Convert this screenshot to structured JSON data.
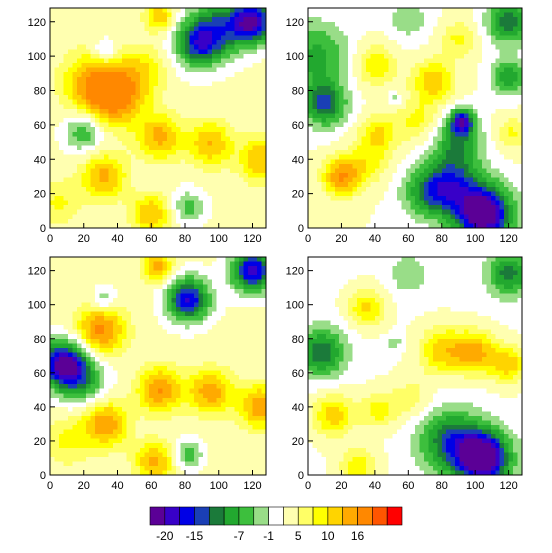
{
  "chart_data": {
    "type": "heatmap",
    "layout": "2x2 filled contour panels with shared horizontal colorbar",
    "grid": false,
    "axis": {
      "xlim": [
        0,
        128
      ],
      "ylim": [
        0,
        128
      ],
      "xticks": [
        0,
        20,
        40,
        60,
        80,
        100,
        120
      ],
      "yticks": [
        0,
        20,
        40,
        60,
        80,
        100,
        120
      ]
    },
    "colorbar": {
      "position": "bottom",
      "levels": [
        -20,
        -17.5,
        -15,
        -12.5,
        -10,
        -7,
        -4,
        -1,
        2,
        5,
        7.5,
        10,
        13,
        16
      ],
      "colors": [
        "#5b0096",
        "#3800c8",
        "#0000e6",
        "#1a3fb5",
        "#1b7a3a",
        "#22a82f",
        "#3dbf3d",
        "#99dd88",
        "#ffffff",
        "#ffffb0",
        "#ffff66",
        "#ffff00",
        "#ffd400",
        "#ffaa00",
        "#ff8800",
        "#ff5500",
        "#ff0000"
      ],
      "labels": [
        {
          "level": -20,
          "text": "-20"
        },
        {
          "level": -15,
          "text": "-15"
        },
        {
          "level": -7,
          "text": "-7"
        },
        {
          "level": -1,
          "text": "-1"
        },
        {
          "level": 5,
          "text": "5"
        },
        {
          "level": 10,
          "text": "10"
        },
        {
          "level": 16,
          "text": "16"
        }
      ]
    },
    "panels": [
      {
        "position": "top-left",
        "base": 3,
        "features": [
          {
            "x": 38,
            "y": 77,
            "amp": 16,
            "r": 12
          },
          {
            "x": 24,
            "y": 85,
            "amp": 9,
            "r": 12
          },
          {
            "x": 55,
            "y": 92,
            "amp": 6,
            "r": 10
          },
          {
            "x": 65,
            "y": 123,
            "amp": 10,
            "r": 6
          },
          {
            "x": 65,
            "y": 53,
            "amp": 11,
            "r": 9
          },
          {
            "x": 95,
            "y": 49,
            "amp": 10,
            "r": 9
          },
          {
            "x": 125,
            "y": 40,
            "amp": 10,
            "r": 9
          },
          {
            "x": 32,
            "y": 30,
            "amp": 11,
            "r": 9
          },
          {
            "x": 60,
            "y": 8,
            "amp": 10,
            "r": 8
          },
          {
            "x": 5,
            "y": 15,
            "amp": 5,
            "r": 9
          },
          {
            "x": 120,
            "y": 120,
            "amp": -22,
            "r": 9
          },
          {
            "x": 88,
            "y": 107,
            "amp": -16,
            "r": 10
          },
          {
            "x": 100,
            "y": 117,
            "amp": -12,
            "r": 12
          },
          {
            "x": 20,
            "y": 56,
            "amp": -10,
            "r": 8
          },
          {
            "x": 33,
            "y": 103,
            "amp": -7,
            "r": 5
          },
          {
            "x": 82,
            "y": 12,
            "amp": -8,
            "r": 7
          }
        ]
      },
      {
        "position": "top-right",
        "base": 2,
        "features": [
          {
            "x": 105,
            "y": 8,
            "amp": -26,
            "r": 12
          },
          {
            "x": 85,
            "y": 25,
            "amp": -15,
            "r": 12
          },
          {
            "x": 92,
            "y": 62,
            "amp": -18,
            "r": 5
          },
          {
            "x": 90,
            "y": 50,
            "amp": -11,
            "r": 10
          },
          {
            "x": 70,
            "y": 20,
            "amp": -9,
            "r": 10
          },
          {
            "x": 10,
            "y": 72,
            "amp": -15,
            "r": 9
          },
          {
            "x": 5,
            "y": 100,
            "amp": -10,
            "r": 14
          },
          {
            "x": 120,
            "y": 120,
            "amp": -14,
            "r": 9
          },
          {
            "x": 120,
            "y": 88,
            "amp": -12,
            "r": 7
          },
          {
            "x": 60,
            "y": 122,
            "amp": -5,
            "r": 9
          },
          {
            "x": 52,
            "y": 75,
            "amp": -5,
            "r": 3
          },
          {
            "x": 20,
            "y": 30,
            "amp": 14,
            "r": 8
          },
          {
            "x": 36,
            "y": 38,
            "amp": 6,
            "r": 9
          },
          {
            "x": 42,
            "y": 55,
            "amp": 8,
            "r": 8
          },
          {
            "x": 65,
            "y": 62,
            "amp": 6,
            "r": 9
          },
          {
            "x": 40,
            "y": 95,
            "amp": 8,
            "r": 9
          },
          {
            "x": 75,
            "y": 85,
            "amp": 10,
            "r": 9
          },
          {
            "x": 90,
            "y": 110,
            "amp": 6,
            "r": 8
          },
          {
            "x": 122,
            "y": 55,
            "amp": 6,
            "r": 7
          }
        ]
      },
      {
        "position": "bottom-left",
        "base": 3,
        "features": [
          {
            "x": 8,
            "y": 65,
            "amp": -24,
            "r": 10
          },
          {
            "x": 20,
            "y": 55,
            "amp": -9,
            "r": 10
          },
          {
            "x": 120,
            "y": 120,
            "amp": -22,
            "r": 9
          },
          {
            "x": 82,
            "y": 103,
            "amp": -21,
            "r": 9
          },
          {
            "x": 32,
            "y": 103,
            "amp": -7,
            "r": 5
          },
          {
            "x": 82,
            "y": 12,
            "amp": -9,
            "r": 6
          },
          {
            "x": 30,
            "y": 85,
            "amp": 14,
            "r": 10
          },
          {
            "x": 64,
            "y": 122,
            "amp": 12,
            "r": 6
          },
          {
            "x": 65,
            "y": 50,
            "amp": 13,
            "r": 9
          },
          {
            "x": 95,
            "y": 49,
            "amp": 12,
            "r": 9
          },
          {
            "x": 125,
            "y": 40,
            "amp": 12,
            "r": 9
          },
          {
            "x": 33,
            "y": 30,
            "amp": 13,
            "r": 9
          },
          {
            "x": 62,
            "y": 8,
            "amp": 11,
            "r": 8
          },
          {
            "x": 10,
            "y": 20,
            "amp": 5,
            "r": 10
          }
        ]
      },
      {
        "position": "bottom-right",
        "base": 1.5,
        "features": [
          {
            "x": 105,
            "y": 10,
            "amp": -26,
            "r": 11
          },
          {
            "x": 85,
            "y": 20,
            "amp": -14,
            "r": 13
          },
          {
            "x": 8,
            "y": 72,
            "amp": -14,
            "r": 10
          },
          {
            "x": 120,
            "y": 118,
            "amp": -13,
            "r": 9
          },
          {
            "x": 60,
            "y": 118,
            "amp": -5,
            "r": 8
          },
          {
            "x": 52,
            "y": 78,
            "amp": -5,
            "r": 3
          },
          {
            "x": 35,
            "y": 98,
            "amp": 9,
            "r": 8
          },
          {
            "x": 80,
            "y": 73,
            "amp": 10,
            "r": 10
          },
          {
            "x": 100,
            "y": 72,
            "amp": 12,
            "r": 9
          },
          {
            "x": 120,
            "y": 65,
            "amp": 10,
            "r": 8
          },
          {
            "x": 15,
            "y": 35,
            "amp": 10,
            "r": 9
          },
          {
            "x": 42,
            "y": 38,
            "amp": 7,
            "r": 8
          },
          {
            "x": 30,
            "y": 5,
            "amp": 8,
            "r": 8
          },
          {
            "x": 62,
            "y": 45,
            "amp": 5,
            "r": 9
          }
        ]
      }
    ]
  }
}
